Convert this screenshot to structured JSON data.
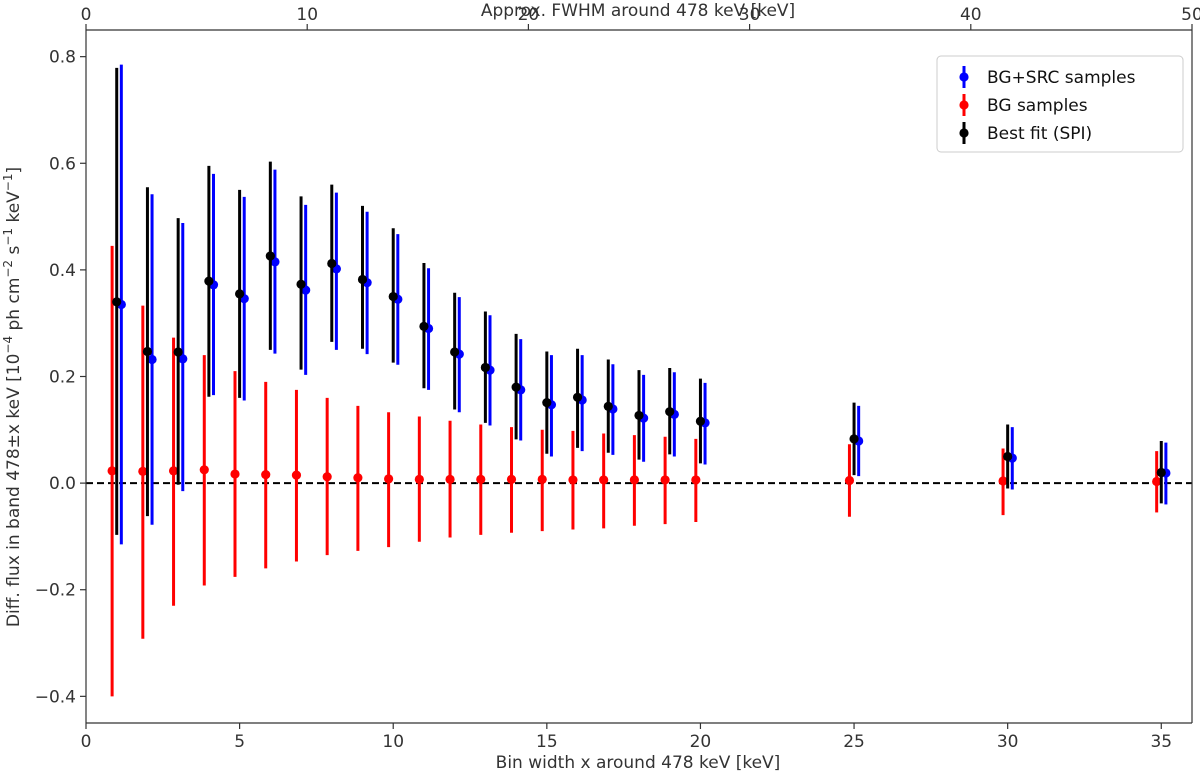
{
  "chart_data": {
    "type": "scatter",
    "title": "",
    "xlabel": "Bin width x around 478 keV [keV]",
    "ylabel_main": "Diff. flux in band 478±x keV [10",
    "ylabel_sup1": "−4",
    "ylabel_mid1": " ph cm",
    "ylabel_sup2": "−2",
    "ylabel_mid2": " s",
    "ylabel_sup3": "−1",
    "ylabel_mid3": " keV",
    "ylabel_sup4": "−1",
    "ylabel_end": "]",
    "top_xlabel": "Approx. FWHM around 478 keV [keV]",
    "xlim": [
      0,
      36
    ],
    "ylim": [
      -0.45,
      0.85
    ],
    "top_xlim": [
      0,
      50
    ],
    "x_ticks": [
      0,
      5,
      10,
      15,
      20,
      25,
      30,
      35
    ],
    "x_tick_labels": [
      "0",
      "5",
      "10",
      "15",
      "20",
      "25",
      "30",
      "35"
    ],
    "y_ticks": [
      -0.4,
      -0.2,
      0.0,
      0.2,
      0.4,
      0.6,
      0.8
    ],
    "y_tick_labels": [
      "−0.4",
      "−0.2",
      "0.0",
      "0.2",
      "0.4",
      "0.6",
      "0.8"
    ],
    "top_x_ticks": [
      0,
      10,
      20,
      30,
      40,
      50
    ],
    "top_x_tick_labels": [
      "0",
      "10",
      "20",
      "30",
      "40",
      "50"
    ],
    "reference_line": {
      "y": 0.0,
      "style": "dashed",
      "color": "#000000"
    },
    "legend_position": "top-right",
    "series": [
      {
        "name": "BG+SRC samples",
        "color": "#0000ff",
        "x_offset": 0.15,
        "x": [
          1,
          2,
          3,
          4,
          5,
          6,
          7,
          8,
          9,
          10,
          11,
          12,
          13,
          14,
          15,
          16,
          17,
          18,
          19,
          20,
          25,
          30,
          35
        ],
        "y": [
          0.335,
          0.232,
          0.233,
          0.372,
          0.346,
          0.415,
          0.362,
          0.402,
          0.376,
          0.345,
          0.29,
          0.242,
          0.212,
          0.175,
          0.147,
          0.156,
          0.139,
          0.122,
          0.129,
          0.113,
          0.079,
          0.047,
          0.019
        ],
        "y_low": [
          -0.115,
          -0.078,
          -0.015,
          0.165,
          0.155,
          0.243,
          0.203,
          0.25,
          0.242,
          0.222,
          0.175,
          0.133,
          0.108,
          0.08,
          0.05,
          0.06,
          0.053,
          0.04,
          0.05,
          0.035,
          0.013,
          -0.012,
          -0.04
        ],
        "y_high": [
          0.785,
          0.542,
          0.488,
          0.58,
          0.537,
          0.588,
          0.522,
          0.545,
          0.509,
          0.467,
          0.403,
          0.349,
          0.315,
          0.27,
          0.24,
          0.24,
          0.223,
          0.203,
          0.208,
          0.188,
          0.145,
          0.105,
          0.076
        ]
      },
      {
        "name": "BG samples",
        "color": "#ff0000",
        "x_offset": -0.15,
        "x": [
          1,
          2,
          3,
          4,
          5,
          6,
          7,
          8,
          9,
          10,
          11,
          12,
          13,
          14,
          15,
          16,
          17,
          18,
          19,
          20,
          25,
          30,
          35
        ],
        "y": [
          0.023,
          0.022,
          0.023,
          0.025,
          0.017,
          0.016,
          0.015,
          0.012,
          0.01,
          0.008,
          0.007,
          0.007,
          0.007,
          0.007,
          0.007,
          0.006,
          0.006,
          0.006,
          0.006,
          0.006,
          0.005,
          0.004,
          0.003
        ],
        "y_low": [
          -0.4,
          -0.292,
          -0.23,
          -0.192,
          -0.176,
          -0.16,
          -0.147,
          -0.135,
          -0.127,
          -0.12,
          -0.11,
          -0.102,
          -0.097,
          -0.093,
          -0.09,
          -0.087,
          -0.085,
          -0.08,
          -0.077,
          -0.073,
          -0.063,
          -0.06,
          -0.055
        ],
        "y_high": [
          0.445,
          0.333,
          0.273,
          0.24,
          0.21,
          0.19,
          0.175,
          0.16,
          0.145,
          0.133,
          0.125,
          0.117,
          0.11,
          0.105,
          0.1,
          0.098,
          0.093,
          0.09,
          0.087,
          0.083,
          0.073,
          0.065,
          0.06
        ]
      },
      {
        "name": "Best fit (SPI)",
        "color": "#000000",
        "x_offset": 0.0,
        "x": [
          1,
          2,
          3,
          4,
          5,
          6,
          7,
          8,
          9,
          10,
          11,
          12,
          13,
          14,
          15,
          16,
          17,
          18,
          19,
          20,
          25,
          30,
          35
        ],
        "y": [
          0.34,
          0.247,
          0.246,
          0.379,
          0.355,
          0.426,
          0.373,
          0.412,
          0.382,
          0.35,
          0.294,
          0.246,
          0.217,
          0.18,
          0.151,
          0.161,
          0.144,
          0.127,
          0.134,
          0.116,
          0.083,
          0.05,
          0.02
        ],
        "y_low": [
          -0.097,
          -0.062,
          -0.003,
          0.162,
          0.16,
          0.25,
          0.213,
          0.265,
          0.252,
          0.226,
          0.178,
          0.138,
          0.113,
          0.082,
          0.055,
          0.066,
          0.057,
          0.044,
          0.054,
          0.037,
          0.015,
          -0.01,
          -0.038
        ],
        "y_high": [
          0.779,
          0.555,
          0.497,
          0.595,
          0.55,
          0.603,
          0.538,
          0.56,
          0.52,
          0.478,
          0.413,
          0.357,
          0.322,
          0.28,
          0.247,
          0.252,
          0.232,
          0.212,
          0.216,
          0.196,
          0.151,
          0.11,
          0.079
        ]
      }
    ]
  }
}
